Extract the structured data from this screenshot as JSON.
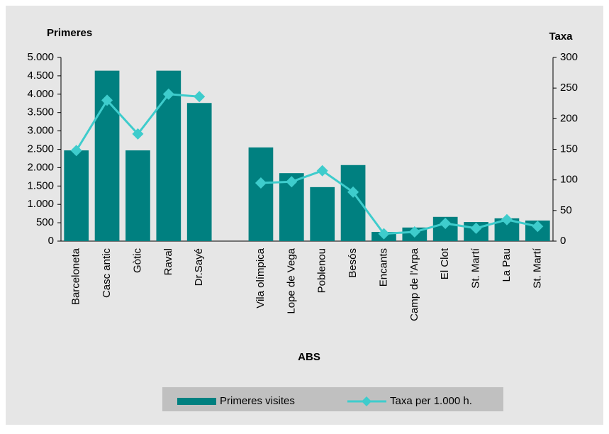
{
  "chart_data": {
    "type": "bar",
    "y_label": "Primeres",
    "y2_label": "Taxa",
    "x_label": "ABS",
    "categories": [
      "Barceloneta",
      "Casc antic",
      "Gòtic",
      "Raval",
      "Dr.Sayé",
      null,
      "Vila olímpica",
      "Lope de Vega",
      "Poblenou",
      "Besós",
      "Encants",
      "Camp de l'Arpa",
      "El Clot",
      "St. Martí",
      "La Pau",
      "St. Martí"
    ],
    "series": [
      {
        "name": "Primeres visites",
        "type": "bar",
        "color": "#008080",
        "values": [
          2470,
          4640,
          2470,
          4640,
          3760,
          null,
          2550,
          1850,
          1470,
          2070,
          250,
          370,
          660,
          520,
          620,
          560
        ]
      },
      {
        "name": "Taxa per 1.000 h.",
        "type": "line",
        "axis": "y2",
        "color": "#3ecccc",
        "values": [
          148,
          230,
          175,
          240,
          236,
          null,
          95,
          97,
          115,
          80,
          12,
          15,
          29,
          21,
          35,
          24
        ]
      }
    ],
    "ylim": [
      0,
      5000
    ],
    "yticks": [
      0,
      500,
      {
        "value": 1000,
        "label": "1.000"
      },
      {
        "value": 1500,
        "label": "1.500"
      },
      {
        "value": 2000,
        "label": "2.000"
      },
      {
        "value": 2500,
        "label": "2.500"
      },
      {
        "value": 3000,
        "label": "3.000"
      },
      {
        "value": 3500,
        "label": "3.500"
      },
      {
        "value": 4000,
        "label": "4.000"
      },
      {
        "value": 4500,
        "label": "4.500"
      },
      {
        "value": 5000,
        "label": "5.000"
      }
    ],
    "y2lim": [
      0,
      300
    ],
    "y2ticks": [
      0,
      50,
      100,
      150,
      200,
      250,
      300
    ],
    "grid": false,
    "legend": "bottom"
  }
}
